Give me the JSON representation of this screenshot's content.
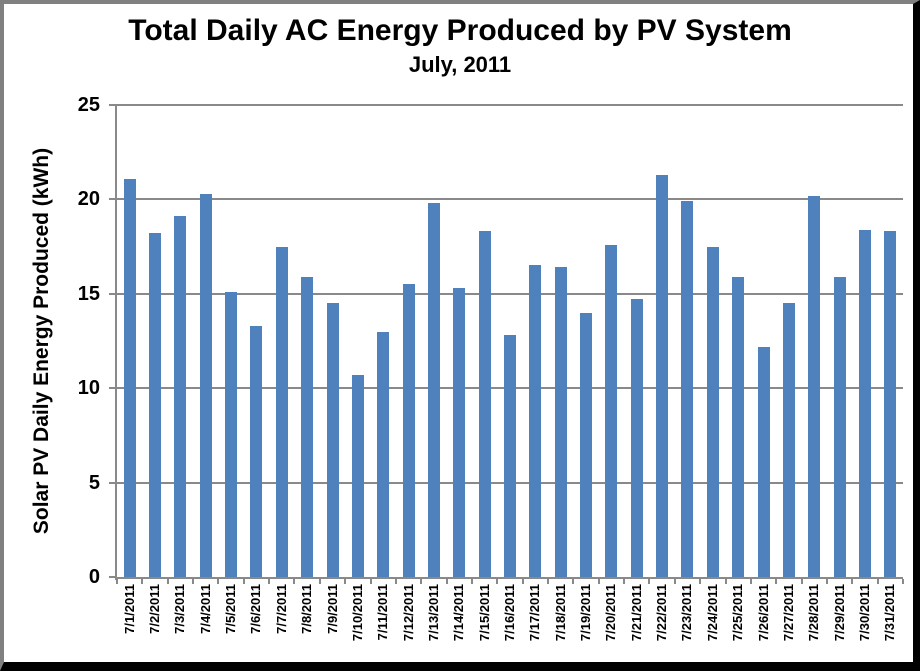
{
  "chart_data": {
    "type": "bar",
    "title": "Total Daily AC Energy Produced by PV System",
    "subtitle": "July, 2011",
    "ylabel": "Solar PV Daily Energy Produced (kWh)",
    "xlabel": "",
    "ylim": [
      0,
      25
    ],
    "yticks": [
      0,
      5,
      10,
      15,
      20,
      25
    ],
    "grid": "horizontal-gray",
    "legend_position": "none",
    "bar_color": "#4F81BD",
    "axis_color": "#898989",
    "categories": [
      "7/1/2011",
      "7/2/2011",
      "7/3/2011",
      "7/4/2011",
      "7/5/2011",
      "7/6/2011",
      "7/7/2011",
      "7/8/2011",
      "7/9/2011",
      "7/10/2011",
      "7/11/2011",
      "7/12/2011",
      "7/13/2011",
      "7/14/2011",
      "7/15/2011",
      "7/16/2011",
      "7/17/2011",
      "7/18/2011",
      "7/19/2011",
      "7/20/2011",
      "7/21/2011",
      "7/22/2011",
      "7/23/2011",
      "7/24/2011",
      "7/25/2011",
      "7/26/2011",
      "7/27/2011",
      "7/28/2011",
      "7/29/2011",
      "7/30/2011",
      "7/31/2011"
    ],
    "values": [
      21.1,
      18.2,
      19.1,
      20.3,
      15.1,
      13.3,
      17.5,
      15.9,
      14.5,
      10.7,
      13.0,
      15.5,
      19.8,
      15.3,
      18.3,
      12.8,
      16.5,
      16.4,
      14.0,
      17.6,
      14.7,
      21.3,
      19.9,
      17.5,
      15.9,
      12.2,
      14.5,
      20.2,
      15.9,
      18.4,
      18.3
    ]
  }
}
